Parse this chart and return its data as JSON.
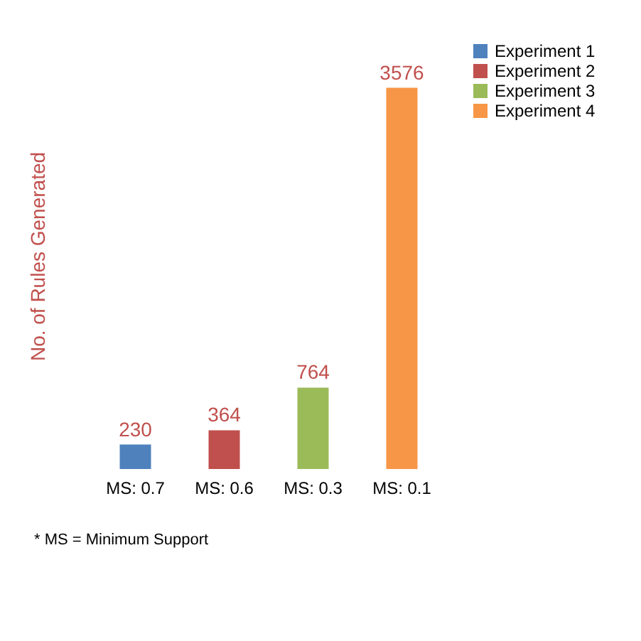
{
  "chart_data": {
    "type": "bar",
    "ylabel": "No. of Rules Generated",
    "categories": [
      "MS: 0.7",
      "MS: 0.6",
      "MS: 0.3",
      "MS: 0.1"
    ],
    "series": [
      {
        "name": "Experiment 1",
        "color": "#4f81bd",
        "values": [
          230,
          null,
          null,
          null
        ]
      },
      {
        "name": "Experiment 2",
        "color": "#c0504d",
        "values": [
          null,
          364,
          null,
          null
        ]
      },
      {
        "name": "Experiment 3",
        "color": "#9bbb59",
        "values": [
          null,
          null,
          764,
          null
        ]
      },
      {
        "name": "Experiment 4",
        "color": "#f79646",
        "values": [
          null,
          null,
          null,
          3576
        ]
      }
    ],
    "data_labels": true,
    "legend": "right",
    "annotations": [
      "* MS = Minimum Support"
    ]
  }
}
